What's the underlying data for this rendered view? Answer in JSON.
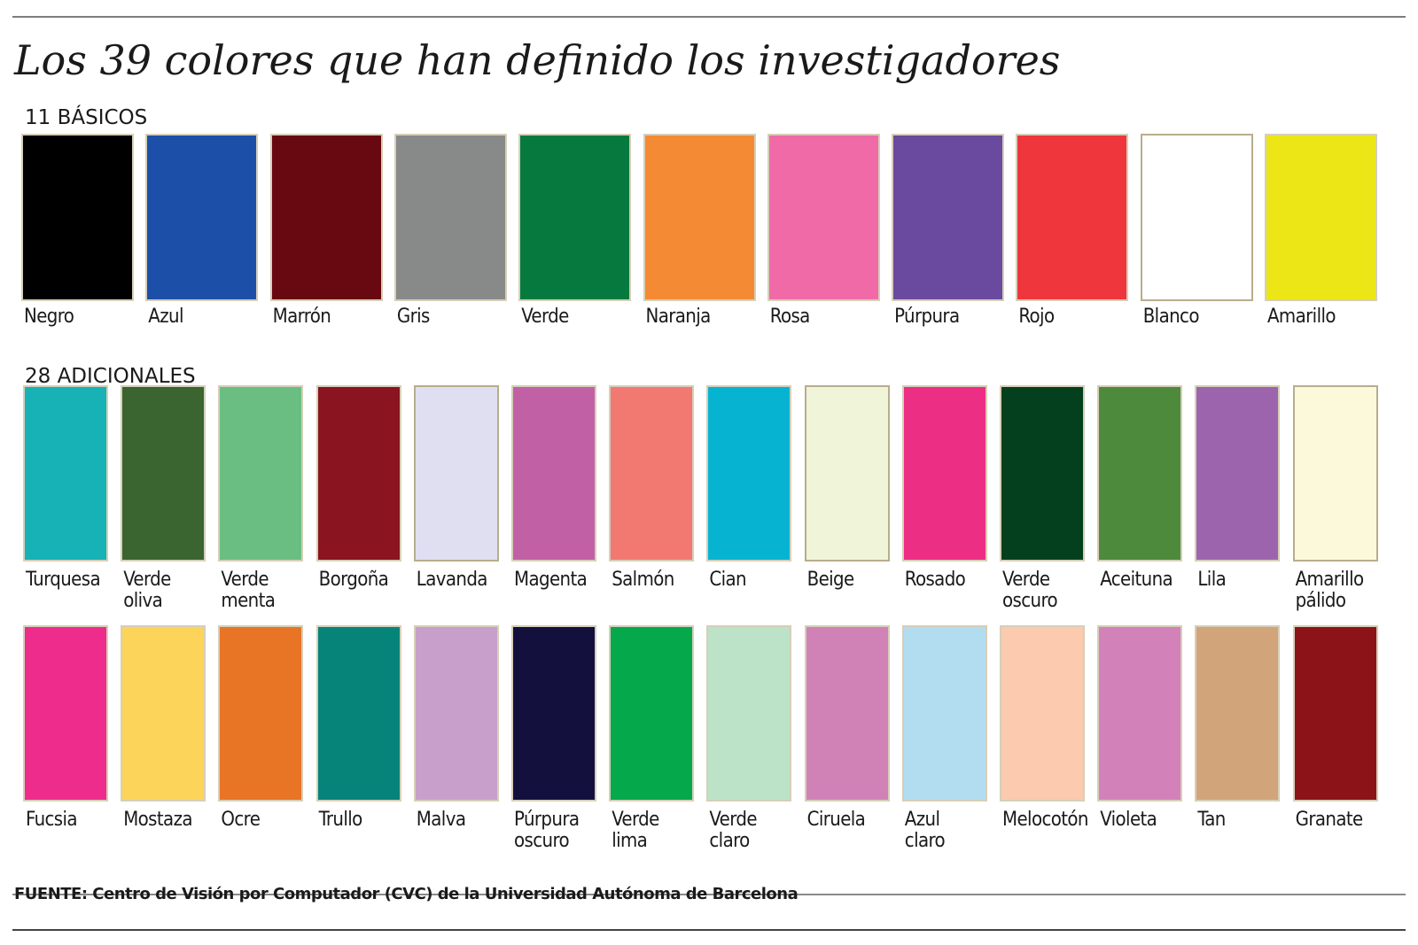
{
  "title": "Los 39 colores que han definido los investigadores",
  "basic": {
    "label": "11 BÁSICOS",
    "colors": [
      {
        "name": "Negro",
        "hex": "#000000"
      },
      {
        "name": "Azul",
        "hex": "#1c50a8"
      },
      {
        "name": "Marrón",
        "hex": "#680810"
      },
      {
        "name": "Gris",
        "hex": "#888a8a"
      },
      {
        "name": "Verde",
        "hex": "#067a3e"
      },
      {
        "name": "Naranja",
        "hex": "#f48a34"
      },
      {
        "name": "Rosa",
        "hex": "#f06aa8"
      },
      {
        "name": "Púrpura",
        "hex": "#6a4a9e"
      },
      {
        "name": "Rojo",
        "hex": "#ee363c"
      },
      {
        "name": "Blanco",
        "hex": "#ffffff"
      },
      {
        "name": "Amarillo",
        "hex": "#ece616"
      }
    ]
  },
  "additional": {
    "label": "28 ADICIONALES",
    "colors": [
      {
        "name": "Turquesa",
        "hex": "#16b2b6"
      },
      {
        "name": "Verde\noliva",
        "hex": "#3a6430"
      },
      {
        "name": "Verde\nmenta",
        "hex": "#6abe82"
      },
      {
        "name": "Borgoña",
        "hex": "#8a1420"
      },
      {
        "name": "Lavanda",
        "hex": "#e0dff2"
      },
      {
        "name": "Magenta",
        "hex": "#c260a6"
      },
      {
        "name": "Salmón",
        "hex": "#f27872"
      },
      {
        "name": "Cian",
        "hex": "#06b4d2"
      },
      {
        "name": "Beige",
        "hex": "#f0f4d8"
      },
      {
        "name": "Rosado",
        "hex": "#ec2e84"
      },
      {
        "name": "Verde\noscuro",
        "hex": "#04401e"
      },
      {
        "name": "Aceituna",
        "hex": "#4e8a3c"
      },
      {
        "name": "Lila",
        "hex": "#9c64ac"
      },
      {
        "name": "Amarillo\npálido",
        "hex": "#fcf8da"
      },
      {
        "name": "Fucsia",
        "hex": "#ee2c8c"
      },
      {
        "name": "Mostaza",
        "hex": "#fcd45a"
      },
      {
        "name": "Ocre",
        "hex": "#e87426"
      },
      {
        "name": "Trullo",
        "hex": "#06847a"
      },
      {
        "name": "Malva",
        "hex": "#c89fca"
      },
      {
        "name": "Púrpura\noscuro",
        "hex": "#14103e"
      },
      {
        "name": "Verde\nlima",
        "hex": "#06a84c"
      },
      {
        "name": "Verde\nclaro",
        "hex": "#bce2c8"
      },
      {
        "name": "Ciruela",
        "hex": "#d082b6"
      },
      {
        "name": "Azul\nclaro",
        "hex": "#b2dcf0"
      },
      {
        "name": "Melocotón",
        "hex": "#fccaae"
      },
      {
        "name": "Violeta",
        "hex": "#d282b8"
      },
      {
        "name": "Tan",
        "hex": "#d2a47a"
      },
      {
        "name": "Granate",
        "hex": "#8c1418"
      }
    ]
  },
  "source": "FUENTE: Centro de Visión por Computador (CVC) de la Universidad Autónoma de Barcelona"
}
